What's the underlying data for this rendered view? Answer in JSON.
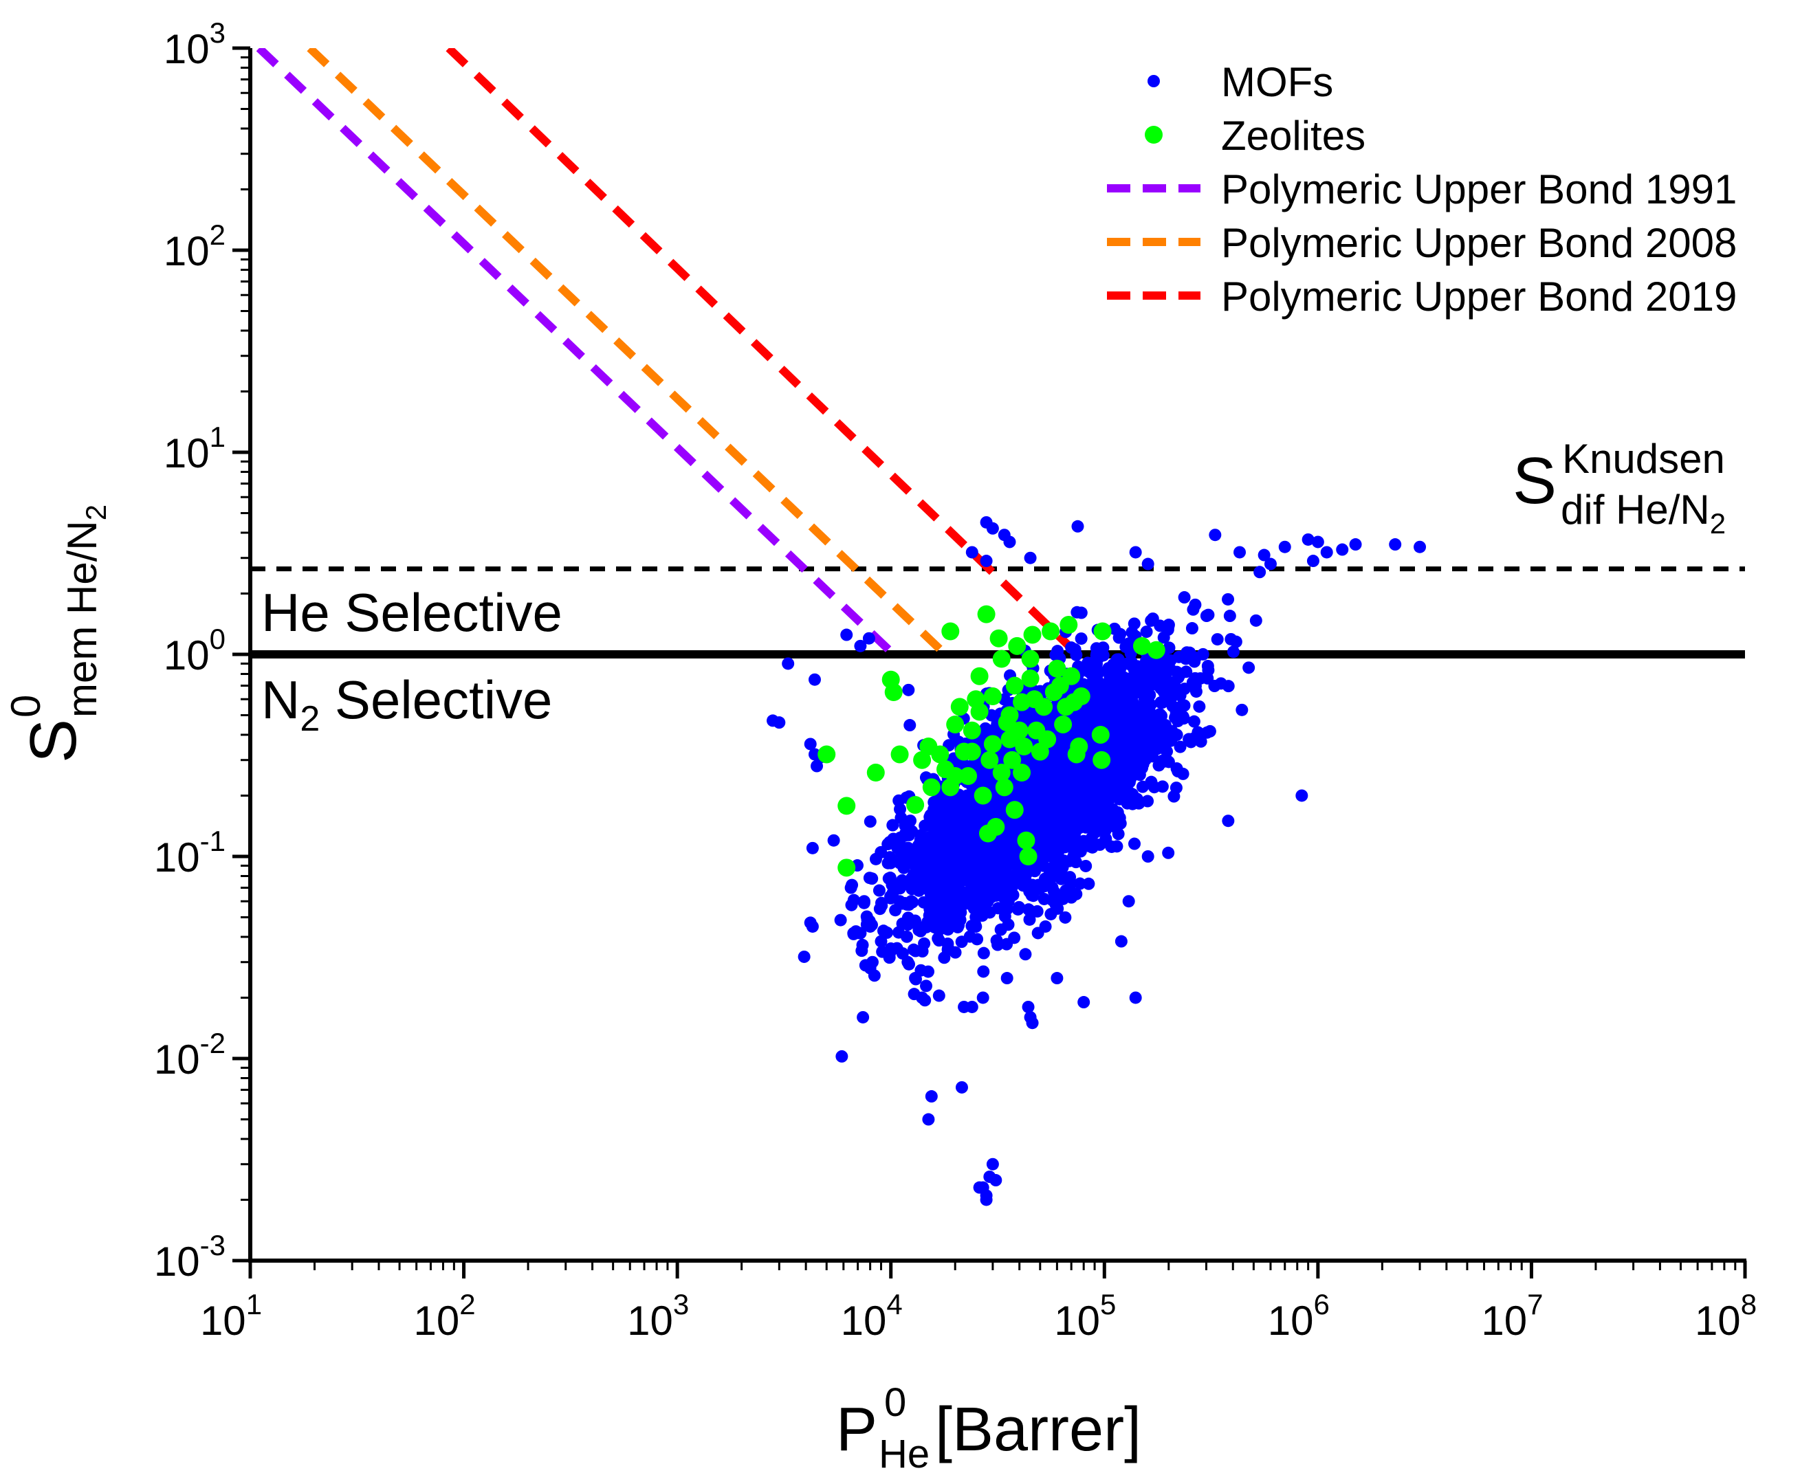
{
  "chart_data": {
    "type": "scatter",
    "xscale": "log",
    "yscale": "log",
    "xlim": [
      10,
      100000000
    ],
    "ylim": [
      0.001,
      1000
    ],
    "xlabel": {
      "main": "P",
      "sup": "0",
      "sub": "He",
      "rest": " [Barrer]"
    },
    "ylabel": {
      "main": "S",
      "sup": "0",
      "sub_a": "mem He/N",
      "sub_b": "2"
    },
    "x_ticks": [
      {
        "value": 10,
        "base": "10",
        "exp": "1"
      },
      {
        "value": 100,
        "base": "10",
        "exp": "2"
      },
      {
        "value": 1000,
        "base": "10",
        "exp": "3"
      },
      {
        "value": 10000,
        "base": "10",
        "exp": "4"
      },
      {
        "value": 100000,
        "base": "10",
        "exp": "5"
      },
      {
        "value": 1000000,
        "base": "10",
        "exp": "6"
      },
      {
        "value": 10000000,
        "base": "10",
        "exp": "7"
      },
      {
        "value": 100000000,
        "base": "10",
        "exp": "8"
      }
    ],
    "y_ticks": [
      {
        "value": 0.001,
        "base": "10",
        "exp": "-3"
      },
      {
        "value": 0.01,
        "base": "10",
        "exp": "-2"
      },
      {
        "value": 0.1,
        "base": "10",
        "exp": "-1"
      },
      {
        "value": 1,
        "base": "10",
        "exp": "0"
      },
      {
        "value": 10,
        "base": "10",
        "exp": "1"
      },
      {
        "value": 100,
        "base": "10",
        "exp": "2"
      },
      {
        "value": 1000,
        "base": "10",
        "exp": "3"
      }
    ],
    "legend": {
      "position": "top-right",
      "entries": [
        {
          "label": "MOFs",
          "color": "#0000ff",
          "kind": "marker-small"
        },
        {
          "label": "Zeolites",
          "color": "#00ff00",
          "kind": "marker-large"
        },
        {
          "label": "Polymeric Upper Bond 1991",
          "color": "#9900ff",
          "kind": "dash"
        },
        {
          "label": "Polymeric Upper Bond 2008",
          "color": "#ff8000",
          "kind": "dash"
        },
        {
          "label": "Polymeric Upper Bond 2019",
          "color": "#ff0000",
          "kind": "dash"
        }
      ]
    },
    "reference_lines": [
      {
        "name": "equal-selectivity",
        "y": 1.0,
        "style": "solid",
        "color": "#000000"
      },
      {
        "name": "knudsen-selectivity",
        "y": 2.65,
        "style": "dashed",
        "color": "#000000"
      }
    ],
    "upper_bounds": [
      {
        "name": "Polymeric Upper Bond 1991",
        "color": "#9900ff",
        "x": [
          11,
          10300
        ],
        "y": [
          1000,
          1.0
        ]
      },
      {
        "name": "Polymeric Upper Bond 2008",
        "color": "#ff8000",
        "x": [
          19,
          18000
        ],
        "y": [
          1000,
          1.0
        ]
      },
      {
        "name": "Polymeric Upper Bond 2019",
        "color": "#ff0000",
        "x": [
          85,
          75000
        ],
        "y": [
          1000,
          1.0
        ]
      }
    ],
    "annotations": {
      "he_selective": "He Selective",
      "n2_selective_main": "N",
      "n2_selective_sub": "2",
      "n2_selective_rest": " Selective",
      "knudsen_main": "S",
      "knudsen_sup": "Knudsen",
      "knudsen_sub_a": "dif He/N",
      "knudsen_sub_b": "2"
    },
    "series": [
      {
        "name": "MOFs",
        "color": "#0000ff",
        "cluster": {
          "count": 3200,
          "center_log_x": 4.68,
          "center_log_y": -0.68,
          "sd_log_x": 0.32,
          "sd_log_y": 0.33,
          "correlation": 0.72,
          "seed": 20231
        },
        "points": [
          [
            28000,
            4.5
          ],
          [
            30000,
            4.2
          ],
          [
            34000,
            3.9
          ],
          [
            36000,
            3.6
          ],
          [
            24000,
            3.2
          ],
          [
            45000,
            3.0
          ],
          [
            28000,
            2.9
          ],
          [
            75000,
            4.3
          ],
          [
            140000,
            3.2
          ],
          [
            160000,
            2.8
          ],
          [
            330000,
            3.9
          ],
          [
            430000,
            3.2
          ],
          [
            560000,
            3.1
          ],
          [
            700000,
            3.4
          ],
          [
            900000,
            3.7
          ],
          [
            1000000,
            3.6
          ],
          [
            1100000,
            3.2
          ],
          [
            1300000,
            3.3
          ],
          [
            1500000,
            3.5
          ],
          [
            2300000,
            3.5
          ],
          [
            3000000,
            3.4
          ],
          [
            950000,
            2.9
          ],
          [
            600000,
            2.8
          ],
          [
            7900,
            1.2
          ],
          [
            6200,
            1.25
          ],
          [
            7200,
            1.1
          ],
          [
            2800,
            0.47
          ],
          [
            3000,
            0.46
          ],
          [
            3300,
            0.9
          ],
          [
            4400,
            0.75
          ],
          [
            4200,
            0.36
          ],
          [
            4700,
            0.31
          ],
          [
            4500,
            0.28
          ],
          [
            4400,
            0.32
          ],
          [
            4300,
            0.11
          ],
          [
            4200,
            0.047
          ],
          [
            4300,
            0.045
          ],
          [
            5400,
            0.12
          ],
          [
            6500,
            0.07
          ],
          [
            7500,
            0.06
          ],
          [
            8000,
            0.045
          ],
          [
            8200,
            0.03
          ],
          [
            8000,
            0.028
          ],
          [
            9000,
            0.038
          ],
          [
            10000,
            0.035
          ],
          [
            12000,
            0.03
          ],
          [
            11000,
            0.06
          ],
          [
            13000,
            0.025
          ],
          [
            14000,
            0.02
          ],
          [
            7400,
            0.016
          ],
          [
            15500,
            0.0065
          ],
          [
            15000,
            0.005
          ],
          [
            21500,
            0.0072
          ],
          [
            27000,
            0.0023
          ],
          [
            28000,
            0.0021
          ],
          [
            29000,
            0.0026
          ],
          [
            30000,
            0.003
          ],
          [
            31000,
            0.0025
          ],
          [
            28000,
            0.002
          ],
          [
            26000,
            0.0023
          ],
          [
            22000,
            0.018
          ],
          [
            24000,
            0.018
          ],
          [
            27000,
            0.02
          ],
          [
            45000,
            0.016
          ],
          [
            46000,
            0.015
          ],
          [
            44000,
            0.018
          ],
          [
            80000,
            0.019
          ],
          [
            140000,
            0.02
          ],
          [
            120000,
            0.038
          ],
          [
            130000,
            0.06
          ],
          [
            380000,
            0.15
          ],
          [
            840000,
            0.2
          ],
          [
            160000,
            0.1
          ],
          [
            60000,
            0.025
          ],
          [
            35000,
            0.025
          ],
          [
            25000,
            0.045
          ],
          [
            18000,
            0.045
          ],
          [
            17000,
            0.08
          ]
        ]
      },
      {
        "name": "Zeolites",
        "color": "#00ff00",
        "points": [
          [
            10000,
            0.75
          ],
          [
            10300,
            0.65
          ],
          [
            8500,
            0.26
          ],
          [
            6200,
            0.178
          ],
          [
            6200,
            0.088
          ],
          [
            5000,
            0.32
          ],
          [
            11000,
            0.32
          ],
          [
            13000,
            0.18
          ],
          [
            14000,
            0.3
          ],
          [
            15000,
            0.35
          ],
          [
            15500,
            0.22
          ],
          [
            17000,
            0.32
          ],
          [
            18000,
            0.27
          ],
          [
            19000,
            1.3
          ],
          [
            20000,
            0.45
          ],
          [
            21000,
            0.55
          ],
          [
            22000,
            0.33
          ],
          [
            23000,
            0.25
          ],
          [
            24000,
            0.42
          ],
          [
            25000,
            0.6
          ],
          [
            26000,
            0.78
          ],
          [
            27000,
            0.2
          ],
          [
            28000,
            1.58
          ],
          [
            28500,
            0.13
          ],
          [
            29000,
            0.3
          ],
          [
            30000,
            0.36
          ],
          [
            31000,
            0.14
          ],
          [
            32000,
            1.2
          ],
          [
            33000,
            0.95
          ],
          [
            34000,
            0.22
          ],
          [
            35000,
            0.46
          ],
          [
            36000,
            0.5
          ],
          [
            37000,
            0.3
          ],
          [
            38000,
            0.17
          ],
          [
            39000,
            1.1
          ],
          [
            40000,
            0.42
          ],
          [
            41000,
            0.26
          ],
          [
            42000,
            0.35
          ],
          [
            43000,
            0.12
          ],
          [
            44000,
            0.1
          ],
          [
            45000,
            0.95
          ],
          [
            46000,
            1.25
          ],
          [
            47000,
            0.6
          ],
          [
            48000,
            0.42
          ],
          [
            50000,
            0.33
          ],
          [
            52000,
            0.55
          ],
          [
            54000,
            0.38
          ],
          [
            56000,
            1.3
          ],
          [
            58000,
            0.65
          ],
          [
            60000,
            0.85
          ],
          [
            62000,
            0.7
          ],
          [
            64000,
            0.45
          ],
          [
            66000,
            0.55
          ],
          [
            68000,
            1.4
          ],
          [
            70000,
            0.78
          ],
          [
            72000,
            0.58
          ],
          [
            74000,
            0.32
          ],
          [
            76000,
            0.35
          ],
          [
            78000,
            0.62
          ],
          [
            96000,
            0.4
          ],
          [
            97000,
            0.3
          ],
          [
            98000,
            1.3
          ],
          [
            150000,
            1.1
          ],
          [
            175000,
            1.05
          ],
          [
            30000,
            0.62
          ],
          [
            24000,
            0.33
          ],
          [
            19000,
            0.22
          ],
          [
            26000,
            0.52
          ],
          [
            33000,
            0.26
          ],
          [
            36000,
            0.38
          ],
          [
            41000,
            0.58
          ],
          [
            45000,
            0.76
          ],
          [
            20000,
            0.25
          ],
          [
            38000,
            0.7
          ]
        ]
      }
    ]
  }
}
